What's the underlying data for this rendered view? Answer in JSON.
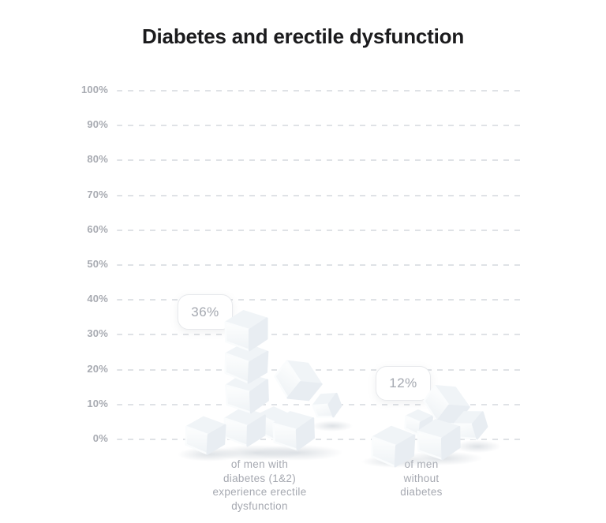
{
  "page": {
    "background": "#ffffff"
  },
  "chart_data": {
    "type": "bar",
    "style": "pictorial bar chart where each bar is a pile of sugar cubes",
    "title": "Diabetes and erectile dysfunction",
    "categories": [
      "of men with\ndiabetes (1&2)\nexperience erectile\ndysfunction",
      "of men\nwithout\ndiabetes"
    ],
    "values": [
      36,
      12
    ],
    "value_labels": [
      "36%",
      "12%"
    ],
    "xlabel": "",
    "ylabel": "",
    "ylim": [
      0,
      100
    ],
    "yticks": [
      100,
      90,
      80,
      70,
      60,
      50,
      40,
      30,
      20,
      10,
      0
    ],
    "ytick_labels": [
      "100%",
      "90%",
      "80%",
      "70%",
      "60%",
      "50%",
      "40%",
      "30%",
      "20%",
      "10%",
      "0%"
    ],
    "grid": "horizontal dashed gridlines at every 10%, y-axis labels on left, no x-axis line",
    "legend": "none"
  },
  "colors": {
    "background": "#ffffff",
    "title_text": "#1b1b1d",
    "tick_text": "#a8abb2",
    "gridline": "#dfe2e6",
    "category_text": "#a6a9b1",
    "badge_text": "#a4a8b0",
    "badge_border": "#e7e9ec",
    "badge_background": "#ffffff",
    "cube_front": "#fafcfd",
    "cube_top": "#f0f4f7",
    "cube_side": "#e8edf2",
    "cube_shadow": "#c3cad1"
  }
}
